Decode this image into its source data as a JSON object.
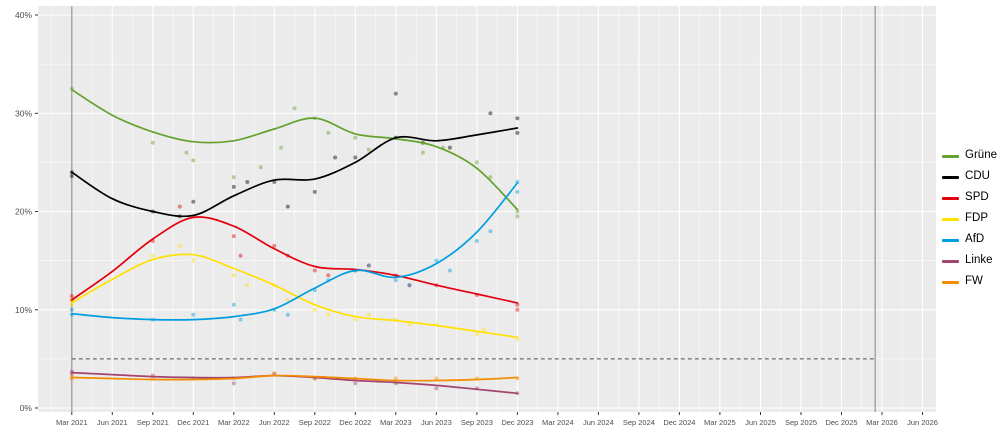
{
  "figure": {
    "background_color": "#ffffff",
    "panel_color": "#ebebeb",
    "grid_color": "#ffffff",
    "axis_text_color": "#4d4d4d",
    "threshold_line_color": "#4d4d4d",
    "election_line_color": "#9b9b9b"
  },
  "chart_data": {
    "type": "line",
    "title": "",
    "legend_position": "right",
    "grid": true,
    "x_unit": "months since Mar 2021",
    "xlim": [
      -2.5,
      64
    ],
    "ylim": [
      0,
      40
    ],
    "x_ticks": [
      0,
      3,
      6,
      9,
      12,
      15,
      18,
      21,
      24,
      27,
      30,
      33,
      36,
      39,
      42,
      45,
      48,
      51,
      54,
      57,
      60,
      63
    ],
    "x_tick_labels": [
      "Mar 2021",
      "Jun 2021",
      "Sep 2021",
      "Dec 2021",
      "Mar 2022",
      "Jun 2022",
      "Sep 2022",
      "Dec 2022",
      "Mar 2023",
      "Jun 2023",
      "Sep 2023",
      "Dec 2023",
      "Mar 2024",
      "Jun 2024",
      "Sep 2024",
      "Dec 2024",
      "Mar 2025",
      "Jun 2025",
      "Sep 2025",
      "Dec 2025",
      "Mar 2026",
      "Jun 2026"
    ],
    "y_ticks": [
      0,
      10,
      20,
      30,
      40
    ],
    "y_tick_labels": [
      "0%",
      "10%",
      "20%",
      "30%",
      "40%"
    ],
    "y_minor_ticks": [
      5,
      15,
      25,
      35
    ],
    "threshold_value": 5,
    "threshold_x_range": [
      0,
      59.5
    ],
    "election_vlines_x": [
      0,
      59.5
    ],
    "series": [
      {
        "name": "Grüne",
        "color": "#64a12d",
        "trend": [
          [
            0,
            32.4
          ],
          [
            3,
            29.8
          ],
          [
            6,
            28.1
          ],
          [
            9,
            27.1
          ],
          [
            12,
            27.2
          ],
          [
            15,
            28.4
          ],
          [
            18,
            29.5
          ],
          [
            21,
            27.9
          ],
          [
            24,
            27.4
          ],
          [
            27,
            26.6
          ],
          [
            30,
            24.4
          ],
          [
            33,
            20.2
          ]
        ],
        "points": [
          [
            0,
            32.5
          ],
          [
            6,
            27
          ],
          [
            8.5,
            26
          ],
          [
            9,
            25.2
          ],
          [
            12,
            23.5
          ],
          [
            14,
            24.5
          ],
          [
            15.5,
            26.5
          ],
          [
            16.5,
            30.5
          ],
          [
            18,
            29.5
          ],
          [
            19,
            28
          ],
          [
            21,
            27.5
          ],
          [
            22,
            26.3
          ],
          [
            24,
            27.5
          ],
          [
            26,
            26
          ],
          [
            27.5,
            26.5
          ],
          [
            30,
            25
          ],
          [
            31,
            23.5
          ],
          [
            33,
            20
          ],
          [
            33,
            19.5
          ]
        ]
      },
      {
        "name": "CDU",
        "color": "#000000",
        "trend": [
          [
            0,
            24.0
          ],
          [
            3,
            21.3
          ],
          [
            6,
            20.0
          ],
          [
            9,
            19.6
          ],
          [
            12,
            21.6
          ],
          [
            15,
            23.2
          ],
          [
            18,
            23.3
          ],
          [
            21,
            25.0
          ],
          [
            24,
            27.5
          ],
          [
            27,
            27.2
          ],
          [
            30,
            27.8
          ],
          [
            33,
            28.5
          ]
        ],
        "points": [
          [
            0,
            24
          ],
          [
            0,
            23.6
          ],
          [
            6,
            20
          ],
          [
            8,
            19.5
          ],
          [
            9,
            21
          ],
          [
            12,
            22.5
          ],
          [
            13,
            23
          ],
          [
            15,
            23
          ],
          [
            16,
            20.5
          ],
          [
            18,
            22
          ],
          [
            19.5,
            25.5
          ],
          [
            21,
            25.5
          ],
          [
            24,
            27.5
          ],
          [
            24,
            32
          ],
          [
            26,
            27
          ],
          [
            28,
            26.5
          ],
          [
            31,
            30
          ],
          [
            33,
            29.5
          ],
          [
            33,
            28
          ]
        ]
      },
      {
        "name": "SPD",
        "color": "#e3000f",
        "trend": [
          [
            0,
            11.0
          ],
          [
            3,
            13.9
          ],
          [
            6,
            17.2
          ],
          [
            9,
            19.4
          ],
          [
            12,
            18.5
          ],
          [
            15,
            16.2
          ],
          [
            18,
            14.4
          ],
          [
            21,
            14.1
          ],
          [
            24,
            13.5
          ],
          [
            27,
            12.5
          ],
          [
            30,
            11.6
          ],
          [
            33,
            10.7
          ]
        ],
        "points": [
          [
            0,
            11
          ],
          [
            0,
            11.4
          ],
          [
            6,
            17
          ],
          [
            8,
            20.5
          ],
          [
            9,
            19.5
          ],
          [
            12,
            17.5
          ],
          [
            12.5,
            15.5
          ],
          [
            15,
            16.5
          ],
          [
            16,
            15.5
          ],
          [
            18,
            14
          ],
          [
            19,
            13.5
          ],
          [
            21,
            14
          ],
          [
            22,
            14.5
          ],
          [
            24,
            13.5
          ],
          [
            25,
            12.5
          ],
          [
            27,
            12.5
          ],
          [
            30,
            11.5
          ],
          [
            33,
            10.5
          ],
          [
            33,
            10
          ]
        ]
      },
      {
        "name": "FDP",
        "color": "#ffe000",
        "trend": [
          [
            0,
            10.7
          ],
          [
            3,
            13.1
          ],
          [
            6,
            15.1
          ],
          [
            9,
            15.6
          ],
          [
            12,
            14.2
          ],
          [
            15,
            12.5
          ],
          [
            18,
            10.5
          ],
          [
            21,
            9.3
          ],
          [
            24,
            8.9
          ],
          [
            27,
            8.4
          ],
          [
            30,
            7.8
          ],
          [
            33,
            7.2
          ]
        ],
        "points": [
          [
            0,
            10.5
          ],
          [
            0,
            11
          ],
          [
            6,
            15.5
          ],
          [
            8,
            16.5
          ],
          [
            9,
            15
          ],
          [
            12,
            13.5
          ],
          [
            13,
            12.5
          ],
          [
            15,
            12.5
          ],
          [
            16,
            11
          ],
          [
            18,
            10
          ],
          [
            19,
            9.5
          ],
          [
            21,
            9
          ],
          [
            22,
            9.5
          ],
          [
            24,
            9
          ],
          [
            25,
            8.5
          ],
          [
            27,
            8.5
          ],
          [
            30,
            7.5
          ],
          [
            30.5,
            8
          ],
          [
            33,
            7
          ]
        ]
      },
      {
        "name": "AfD",
        "color": "#009ee0",
        "trend": [
          [
            0,
            9.6
          ],
          [
            3,
            9.2
          ],
          [
            6,
            9.0
          ],
          [
            9,
            9.0
          ],
          [
            12,
            9.3
          ],
          [
            15,
            10.1
          ],
          [
            18,
            12.2
          ],
          [
            21,
            14.0
          ],
          [
            24,
            13.3
          ],
          [
            27,
            14.7
          ],
          [
            30,
            17.9
          ],
          [
            33,
            22.9
          ]
        ],
        "points": [
          [
            0,
            9.5
          ],
          [
            0,
            10
          ],
          [
            6,
            9
          ],
          [
            9,
            9.5
          ],
          [
            12,
            10.5
          ],
          [
            12.5,
            9
          ],
          [
            15,
            10
          ],
          [
            16,
            9.5
          ],
          [
            18,
            12
          ],
          [
            19,
            13
          ],
          [
            21,
            14
          ],
          [
            22,
            14.5
          ],
          [
            24,
            13
          ],
          [
            25,
            12.5
          ],
          [
            27,
            15
          ],
          [
            28,
            14
          ],
          [
            30,
            17
          ],
          [
            31,
            18
          ],
          [
            33,
            23
          ],
          [
            33,
            22
          ]
        ]
      },
      {
        "name": "Linke",
        "color": "#a3446e",
        "trend": [
          [
            0,
            3.6
          ],
          [
            3,
            3.4
          ],
          [
            6,
            3.2
          ],
          [
            9,
            3.1
          ],
          [
            12,
            3.1
          ],
          [
            15,
            3.3
          ],
          [
            18,
            3.1
          ],
          [
            21,
            2.8
          ],
          [
            24,
            2.6
          ],
          [
            27,
            2.3
          ],
          [
            30,
            1.9
          ],
          [
            33,
            1.5
          ]
        ],
        "points": [
          [
            0,
            3.5
          ],
          [
            0,
            3.7
          ],
          [
            6,
            3.3
          ],
          [
            9,
            3
          ],
          [
            12,
            2.5
          ],
          [
            15,
            3.5
          ],
          [
            18,
            3
          ],
          [
            21,
            2.5
          ],
          [
            24,
            2.5
          ],
          [
            27,
            2
          ],
          [
            30,
            2
          ],
          [
            33,
            1.5
          ]
        ]
      },
      {
        "name": "FW",
        "color": "#f28c00",
        "trend": [
          [
            0,
            3.1
          ],
          [
            3,
            3.0
          ],
          [
            6,
            2.9
          ],
          [
            9,
            2.9
          ],
          [
            12,
            3.0
          ],
          [
            15,
            3.3
          ],
          [
            18,
            3.2
          ],
          [
            21,
            3.0
          ],
          [
            24,
            2.8
          ],
          [
            27,
            2.8
          ],
          [
            30,
            2.9
          ],
          [
            33,
            3.1
          ]
        ],
        "points": [
          [
            0,
            3
          ],
          [
            0,
            3.2
          ],
          [
            6,
            3
          ],
          [
            9,
            3
          ],
          [
            12,
            3
          ],
          [
            15,
            3.5
          ],
          [
            18,
            3
          ],
          [
            21,
            3
          ],
          [
            24,
            3
          ],
          [
            27,
            3
          ],
          [
            30,
            3
          ],
          [
            33,
            3
          ]
        ]
      }
    ]
  }
}
